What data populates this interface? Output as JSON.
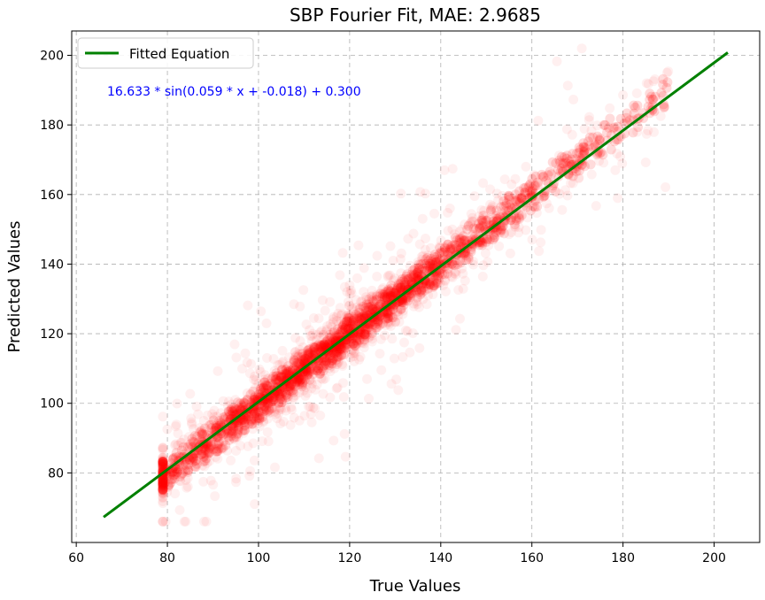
{
  "chart_data": {
    "type": "scatter",
    "title": "SBP Fourier Fit, MAE: 2.9685",
    "xlabel": "True Values",
    "ylabel": "Predicted Values",
    "xlim": [
      59,
      210
    ],
    "ylim": [
      60,
      207
    ],
    "x_ticks": [
      60,
      80,
      100,
      120,
      140,
      160,
      180,
      200
    ],
    "y_ticks": [
      80,
      100,
      120,
      140,
      160,
      180,
      200
    ],
    "grid": true,
    "legend_position": "top-left",
    "annotation": "16.633 * sin(0.059 * x + -0.018) + 0.300",
    "series": [
      {
        "name": "Fitted Equation",
        "kind": "line",
        "color": "#008000",
        "points": [
          [
            66,
            67.3
          ],
          [
            203,
            200.8
          ]
        ]
      },
      {
        "kind": "scatter",
        "color": "#ff0000",
        "x_range": [
          79,
          190
        ],
        "distribution": "dense band along y = x with outliers"
      }
    ]
  },
  "colors": {
    "points": "#ff0000",
    "fit_line": "#008000",
    "annotation": "#0000ff",
    "grid": "#b0b0b0"
  }
}
